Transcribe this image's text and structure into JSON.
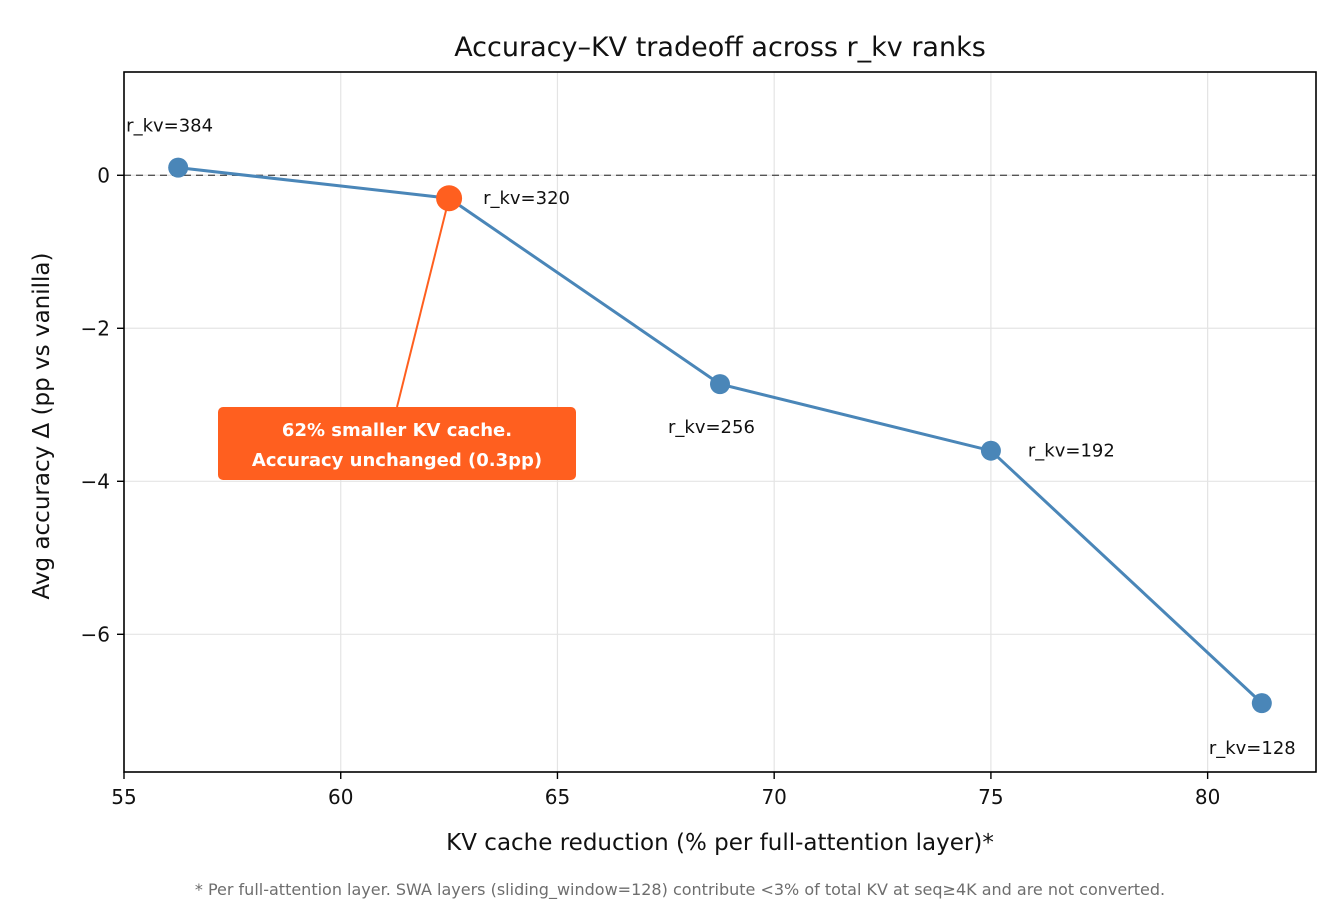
{
  "chart_data": {
    "type": "line",
    "title": "Accuracy–KV tradeoff across r_kv ranks",
    "xlabel": "KV cache reduction (% per full-attention layer)*",
    "ylabel": "Avg accuracy Δ (pp vs vanilla)",
    "xlim": [
      55,
      82.5
    ],
    "ylim": [
      -7.8,
      1.35
    ],
    "xticks": [
      55,
      60,
      65,
      70,
      75,
      80
    ],
    "yticks": [
      0,
      -2,
      -4,
      -6
    ],
    "ytick_labels": [
      "0",
      "−2",
      "−4",
      "−6"
    ],
    "grid": true,
    "reference_line": {
      "y": 0,
      "style": "dashed"
    },
    "series": [
      {
        "color": "#4a86b8",
        "points": [
          {
            "x": 56.25,
            "y": 0.1,
            "label": "r_kv=384"
          },
          {
            "x": 62.5,
            "y": -0.3,
            "label": "r_kv=320",
            "highlight": true
          },
          {
            "x": 68.75,
            "y": -2.73,
            "label": "r_kv=256"
          },
          {
            "x": 75.0,
            "y": -3.6,
            "label": "r_kv=192"
          },
          {
            "x": 81.25,
            "y": -6.9,
            "label": "r_kv=128"
          }
        ]
      }
    ],
    "highlight_color": "#ff5f1f",
    "annotation": {
      "lines": [
        "62% smaller KV cache.",
        "Accuracy unchanged (0.3pp)"
      ],
      "target_point": 1,
      "color": "#ff5f1f"
    }
  },
  "footnote": "* Per full-attention layer. SWA layers (sliding_window=128) contribute <3% of total KV at seq≥4K and are not converted."
}
